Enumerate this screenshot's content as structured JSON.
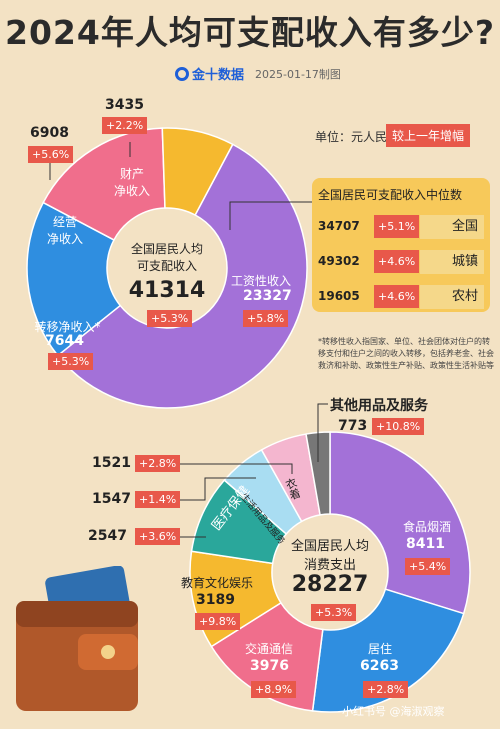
{
  "header": {
    "title": "2024年人均可支配收入有多少?",
    "brand": "金十数据",
    "date": "2025-01-17制图"
  },
  "legend": {
    "unit": "单位：元人民币",
    "yoy_label": "较上一年增幅"
  },
  "income": {
    "center_title_1": "全国居民人均",
    "center_title_2": "可支配收入",
    "total": "41314",
    "total_change": "+5.3%",
    "labels": {
      "wage": "工资性收入",
      "transfer": "转移净收入*",
      "business_1": "经营",
      "business_2": "净收入",
      "property_1": "财产",
      "property_2": "净收入"
    },
    "value_texts": {
      "wage": "23327",
      "wage_chg": "+5.8%",
      "transfer": "7644",
      "transfer_chg": "+5.3%",
      "business": "6908",
      "business_chg": "+5.6%",
      "property": "3435",
      "property_chg": "+2.2%"
    }
  },
  "median": {
    "title": "全国居民可支配收入中位数",
    "rows": [
      {
        "value": "34707",
        "change": "+5.1%",
        "label": "全国"
      },
      {
        "value": "49302",
        "change": "+4.6%",
        "label": "城镇"
      },
      {
        "value": "19605",
        "change": "+4.6%",
        "label": "农村"
      }
    ]
  },
  "note": "*转移性收入指国家、单位、社会团体对住户的转移支付和住户之间的收入转移，包括养老金、社会救济和补助、政策性生产补贴、政策性生活补贴等",
  "spending": {
    "center_title_1": "全国居民人均",
    "center_title_2": "消费支出",
    "total": "28227",
    "total_change": "+5.3%",
    "labels": {
      "food": "食品烟酒",
      "housing": "居住",
      "transport": "交通通信",
      "edu": "教育文化娱乐",
      "medical": "医疗保健",
      "daily": "生活用品及服务",
      "clothing": "衣着",
      "other": "其他用品及服务"
    },
    "value_texts": {
      "food": "8411",
      "food_chg": "+5.4%",
      "housing": "6263",
      "housing_chg": "+2.8%",
      "transport": "3976",
      "transport_chg": "+8.9%",
      "edu": "3189",
      "edu_chg": "+9.8%",
      "medical": "2547",
      "medical_chg": "+3.6%",
      "daily": "1547",
      "daily_chg": "+1.4%",
      "clothing": "1521",
      "clothing_chg": "+2.8%",
      "other": "773",
      "other_chg": "+10.8%"
    }
  },
  "footer": "小红书号 @海淑观察",
  "chart_data": [
    {
      "type": "pie",
      "title": "全国居民人均可支配收入",
      "categories": [
        "工资性收入",
        "转移净收入*",
        "经营净收入",
        "财产净收入"
      ],
      "values": [
        23327,
        7644,
        6908,
        3435
      ],
      "changes": [
        "+5.8%",
        "+5.3%",
        "+5.6%",
        "+2.2%"
      ],
      "colors": [
        "#a371d8",
        "#2f8ee0",
        "#f06e8c",
        "#f5b92f"
      ],
      "total": 41314
    },
    {
      "type": "pie",
      "title": "全国居民人均消费支出",
      "categories": [
        "食品烟酒",
        "居住",
        "交通通信",
        "教育文化娱乐",
        "医疗保健",
        "生活用品及服务",
        "衣着",
        "其他用品及服务"
      ],
      "values": [
        8411,
        6263,
        3976,
        3189,
        2547,
        1547,
        1521,
        773
      ],
      "changes": [
        "+5.4%",
        "+2.8%",
        "+8.9%",
        "+9.8%",
        "+3.6%",
        "+1.4%",
        "+2.8%",
        "+10.8%"
      ],
      "colors": [
        "#a371d8",
        "#2f8ee0",
        "#f06e8c",
        "#f5b92f",
        "#2aa79b",
        "#a9ddf2",
        "#f4b6cf",
        "#777777"
      ],
      "total": 28227
    }
  ]
}
